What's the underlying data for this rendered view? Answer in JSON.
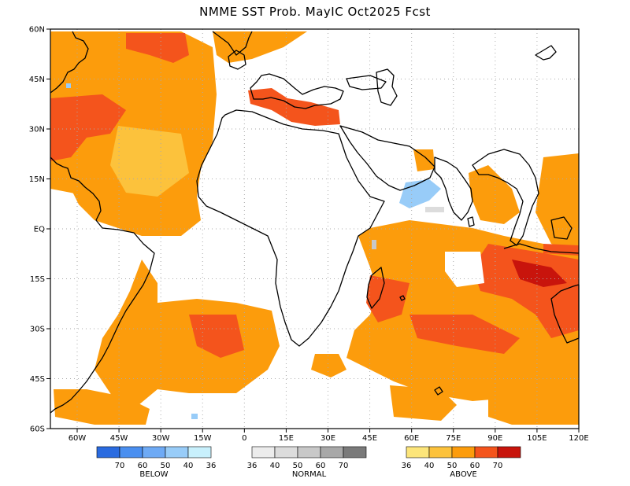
{
  "title": "NMME SST Prob. MayIC  Oct2025 Fcst",
  "map": {
    "lat_labels": [
      "60N",
      "45N",
      "30N",
      "15N",
      "EQ",
      "15S",
      "30S",
      "45S",
      "60S"
    ],
    "lon_labels": [
      "60W",
      "45W",
      "30W",
      "15W",
      "0",
      "15E",
      "30E",
      "45E",
      "60E",
      "75E",
      "90E",
      "105E",
      "120E"
    ]
  },
  "legend": {
    "below": {
      "label": "BELOW",
      "ticks": [
        "70",
        "60",
        "50",
        "40",
        "36"
      ],
      "colors": [
        "#2a6be0",
        "#4a8ff0",
        "#6eaaf5",
        "#98ccf8",
        "#c8f0fc"
      ]
    },
    "normal": {
      "label": "NORMAL",
      "ticks": [
        "36",
        "40",
        "50",
        "60",
        "70"
      ],
      "colors": [
        "#ececec",
        "#dcdcdc",
        "#c8c8c8",
        "#a8a8a8",
        "#7a7a7a"
      ]
    },
    "above": {
      "label": "ABOVE",
      "ticks": [
        "36",
        "40",
        "50",
        "60",
        "70"
      ],
      "colors": [
        "#fce57a",
        "#fcc23c",
        "#fc9c0c",
        "#f4541c",
        "#c8140c"
      ]
    }
  }
}
